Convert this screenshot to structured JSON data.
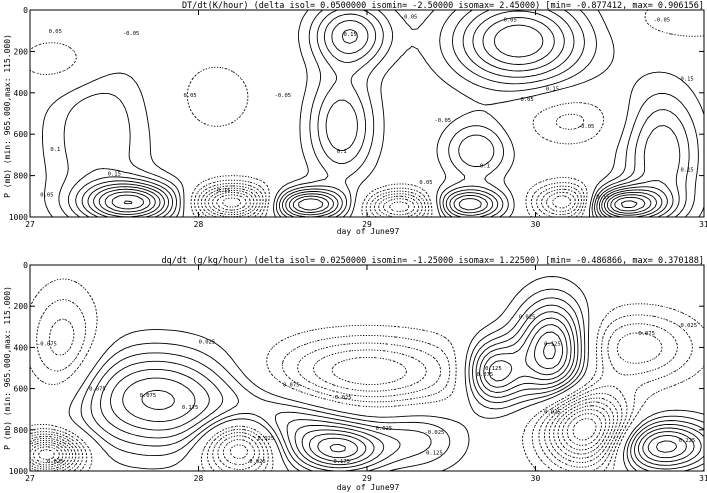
{
  "chart_data": [
    {
      "type": "contour",
      "title": "DT/dt(K/hour)  (delta isol= 0.0500000  isomin= -2.50000  isomax= 2.45000) [min= -0.877412, max= 0.906156]",
      "xlabel": "day of June97",
      "ylabel": "P (mb)  (min: 965.000,max: 115.000)",
      "xlim": [
        27,
        31
      ],
      "ylim": [
        1000,
        0
      ],
      "xticks": [
        "27",
        "28",
        "29",
        "30",
        "31"
      ],
      "yticks": [
        "0",
        "200",
        "400",
        "600",
        "800",
        "1000"
      ],
      "isolines": {
        "delta": 0.05,
        "min": -2.5,
        "max": 2.45
      },
      "field_range": {
        "min": -0.877412,
        "max": 0.906156
      },
      "linestyle": {
        "positive": "solid",
        "negative": "dotted"
      },
      "features": [
        {
          "x": 28.9,
          "y": 120,
          "sign": 1,
          "amp": 0.3,
          "sx": 0.16,
          "sy": 110
        },
        {
          "x": 29.9,
          "y": 150,
          "sign": 1,
          "amp": 0.4,
          "sx": 0.28,
          "sy": 150
        },
        {
          "x": 28.85,
          "y": 560,
          "sign": 1,
          "amp": 0.25,
          "sx": 0.14,
          "sy": 180
        },
        {
          "x": 29.65,
          "y": 680,
          "sign": 1,
          "amp": 0.2,
          "sx": 0.14,
          "sy": 100
        },
        {
          "x": 30.75,
          "y": 700,
          "sign": 1,
          "amp": 0.25,
          "sx": 0.16,
          "sy": 220
        },
        {
          "x": 27.4,
          "y": 600,
          "sign": 1,
          "amp": 0.15,
          "sx": 0.22,
          "sy": 300
        },
        {
          "x": 27.6,
          "y": 930,
          "sign": 1,
          "amp": 0.5,
          "sx": 0.2,
          "sy": 70
        },
        {
          "x": 28.65,
          "y": 940,
          "sign": 1,
          "amp": 0.45,
          "sx": 0.16,
          "sy": 55
        },
        {
          "x": 29.6,
          "y": 940,
          "sign": 1,
          "amp": 0.4,
          "sx": 0.15,
          "sy": 55
        },
        {
          "x": 30.5,
          "y": 940,
          "sign": 1,
          "amp": 0.55,
          "sx": 0.18,
          "sy": 60
        },
        {
          "x": 27.2,
          "y": 250,
          "sign": -1,
          "amp": 0.12,
          "sx": 0.2,
          "sy": 100
        },
        {
          "x": 28.2,
          "y": 930,
          "sign": -1,
          "amp": 0.5,
          "sx": 0.16,
          "sy": 60
        },
        {
          "x": 29.2,
          "y": 950,
          "sign": -1,
          "amp": 0.4,
          "sx": 0.15,
          "sy": 55
        },
        {
          "x": 30.2,
          "y": 930,
          "sign": -1,
          "amp": 0.45,
          "sx": 0.14,
          "sy": 60
        },
        {
          "x": 30.9,
          "y": 40,
          "sign": -1,
          "amp": 0.1,
          "sx": 0.25,
          "sy": 80
        },
        {
          "x": 30.2,
          "y": 530,
          "sign": -1,
          "amp": 0.12,
          "sx": 0.2,
          "sy": 90
        },
        {
          "x": 28.1,
          "y": 420,
          "sign": -1,
          "amp": 0.08,
          "sx": 0.2,
          "sy": 150
        }
      ],
      "contour_labels": [
        {
          "x": 29.25,
          "y": 40,
          "text": "-0.05"
        },
        {
          "x": 29.85,
          "y": 55,
          "text": "0.05"
        },
        {
          "x": 30.75,
          "y": 55,
          "text": "-0.05"
        },
        {
          "x": 27.15,
          "y": 110,
          "text": "0.05"
        },
        {
          "x": 27.6,
          "y": 120,
          "text": "-0.05"
        },
        {
          "x": 28.9,
          "y": 125,
          "text": "0.15"
        },
        {
          "x": 27.95,
          "y": 420,
          "text": "0.05"
        },
        {
          "x": 28.5,
          "y": 420,
          "text": "-0.05"
        },
        {
          "x": 29.95,
          "y": 440,
          "text": "0.05"
        },
        {
          "x": 30.1,
          "y": 390,
          "text": "0.15"
        },
        {
          "x": 30.9,
          "y": 340,
          "text": "0.15"
        },
        {
          "x": 29.45,
          "y": 540,
          "text": "-0.05"
        },
        {
          "x": 28.85,
          "y": 690,
          "text": "0.1"
        },
        {
          "x": 27.15,
          "y": 680,
          "text": "0.1"
        },
        {
          "x": 27.5,
          "y": 800,
          "text": "0.15"
        },
        {
          "x": 29.7,
          "y": 760,
          "text": "0.1"
        },
        {
          "x": 30.3,
          "y": 570,
          "text": "-0.05"
        },
        {
          "x": 29.35,
          "y": 840,
          "text": "0.05"
        },
        {
          "x": 30.9,
          "y": 780,
          "text": "0.15"
        },
        {
          "x": 27.1,
          "y": 900,
          "text": "0.05"
        },
        {
          "x": 28.15,
          "y": 880,
          "text": "0.15"
        },
        {
          "x": 30.4,
          "y": 910,
          "text": "0.15"
        }
      ]
    },
    {
      "type": "contour",
      "title": "dq/dt (g/kg/hour)  (delta isol= 0.0250000  isomin= -1.25000  isomax= 1.22500) [min= -0.486866, max= 0.370188]",
      "xlabel": "day of June97",
      "ylabel": "P (mb)  (min: 965.000,max: 115.000)",
      "xlim": [
        27,
        31
      ],
      "ylim": [
        1000,
        0
      ],
      "xticks": [
        "27",
        "28",
        "29",
        "30",
        "31"
      ],
      "yticks": [
        "0",
        "200",
        "400",
        "600",
        "800",
        "1000"
      ],
      "isolines": {
        "delta": 0.025,
        "min": -1.25,
        "max": 1.225
      },
      "field_range": {
        "min": -0.486866,
        "max": 0.370188
      },
      "linestyle": {
        "positive": "solid",
        "negative": "dotted"
      },
      "features": [
        {
          "x": 30.1,
          "y": 420,
          "sign": 1,
          "amp": 0.25,
          "sx": 0.15,
          "sy": 170
        },
        {
          "x": 29.75,
          "y": 520,
          "sign": 1,
          "amp": 0.2,
          "sx": 0.12,
          "sy": 110
        },
        {
          "x": 27.75,
          "y": 650,
          "sign": 1,
          "amp": 0.18,
          "sx": 0.35,
          "sy": 170
        },
        {
          "x": 28.5,
          "y": 800,
          "sign": 1,
          "amp": 0.12,
          "sx": 0.3,
          "sy": 120
        },
        {
          "x": 28.85,
          "y": 900,
          "sign": 1,
          "amp": 0.18,
          "sx": 0.18,
          "sy": 80
        },
        {
          "x": 30.75,
          "y": 880,
          "sign": 1,
          "amp": 0.22,
          "sx": 0.22,
          "sy": 90
        },
        {
          "x": 29.3,
          "y": 850,
          "sign": 1,
          "amp": 0.08,
          "sx": 0.2,
          "sy": 110
        },
        {
          "x": 27.1,
          "y": 920,
          "sign": -1,
          "amp": 0.3,
          "sx": 0.14,
          "sy": 70
        },
        {
          "x": 28.25,
          "y": 880,
          "sign": -1,
          "amp": 0.25,
          "sx": 0.16,
          "sy": 100
        },
        {
          "x": 30.3,
          "y": 800,
          "sign": -1,
          "amp": 0.3,
          "sx": 0.18,
          "sy": 130
        },
        {
          "x": 29.0,
          "y": 520,
          "sign": -1,
          "amp": 0.15,
          "sx": 0.4,
          "sy": 120
        },
        {
          "x": 30.6,
          "y": 400,
          "sign": -1,
          "amp": 0.12,
          "sx": 0.25,
          "sy": 120
        },
        {
          "x": 27.2,
          "y": 400,
          "sign": -1,
          "amp": 0.1,
          "sx": 0.15,
          "sy": 200
        }
      ],
      "contour_labels": [
        {
          "x": 27.1,
          "y": 390,
          "text": "-0.075"
        },
        {
          "x": 27.4,
          "y": 610,
          "text": "0.075"
        },
        {
          "x": 27.7,
          "y": 640,
          "text": "0.075"
        },
        {
          "x": 28.05,
          "y": 380,
          "text": "0.025"
        },
        {
          "x": 27.95,
          "y": 700,
          "text": "0.175"
        },
        {
          "x": 28.55,
          "y": 590,
          "text": "0.075"
        },
        {
          "x": 28.85,
          "y": 650,
          "text": "-0.025"
        },
        {
          "x": 28.4,
          "y": 850,
          "text": "0.025"
        },
        {
          "x": 28.35,
          "y": 960,
          "text": "0.025"
        },
        {
          "x": 28.85,
          "y": 960,
          "text": "0.175"
        },
        {
          "x": 29.1,
          "y": 800,
          "text": "0.025"
        },
        {
          "x": 29.4,
          "y": 820,
          "text": "-0.025"
        },
        {
          "x": 29.4,
          "y": 920,
          "text": "0.125"
        },
        {
          "x": 29.75,
          "y": 510,
          "text": "0.125"
        },
        {
          "x": 29.7,
          "y": 540,
          "text": "0.075"
        },
        {
          "x": 29.95,
          "y": 260,
          "text": "0.025"
        },
        {
          "x": 30.1,
          "y": 390,
          "text": "0.125"
        },
        {
          "x": 30.65,
          "y": 340,
          "text": "-0.075"
        },
        {
          "x": 30.9,
          "y": 300,
          "text": "-0.025"
        },
        {
          "x": 30.1,
          "y": 720,
          "text": "0.025"
        },
        {
          "x": 30.9,
          "y": 860,
          "text": "0.225"
        },
        {
          "x": 27.15,
          "y": 960,
          "text": "0.025"
        }
      ]
    }
  ]
}
